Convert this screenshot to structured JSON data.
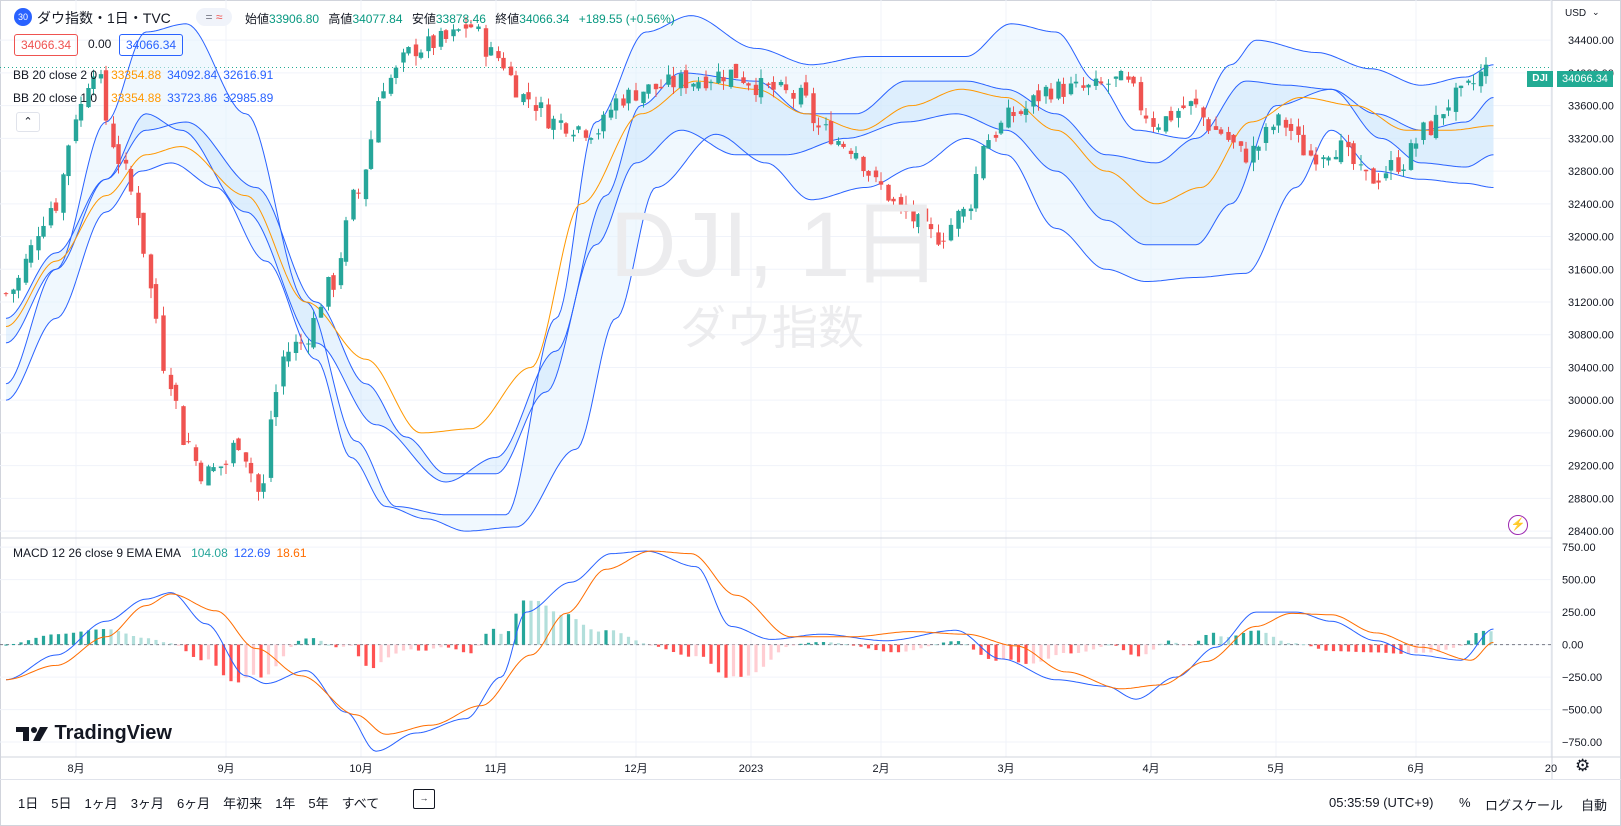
{
  "header": {
    "symbol_badge": "30",
    "title": "ダウ指数・1日・TVC",
    "ohlc": [
      {
        "k": "始値",
        "v": "33906.80"
      },
      {
        "k": "高値",
        "v": "34077.84"
      },
      {
        "k": "安値",
        "v": "33878.46"
      },
      {
        "k": "終値",
        "v": "34066.34"
      }
    ],
    "change": "+189.55 (+0.56%)",
    "sell_price": "34066.34",
    "spread": "0.00",
    "buy_price": "34066.34"
  },
  "indicators": {
    "bb2": {
      "label": "BB 20 close 2 0",
      "basis": "33354.88",
      "upper": "34092.84",
      "lower": "32616.91"
    },
    "bb1": {
      "label": "BB 20 close 1 0",
      "basis": "33354.88",
      "upper": "33723.86",
      "lower": "32985.89"
    },
    "macd": {
      "label": "MACD 12 26 close 9 EMA EMA",
      "hist": "104.08",
      "macd": "122.69",
      "signal": "18.61"
    }
  },
  "watermark": {
    "line1": "DJI, 1日",
    "line2": "ダウ指数"
  },
  "currency": "USD",
  "last_price": {
    "symbol": "DJI",
    "value": "34066.34"
  },
  "logo": "TradingView",
  "bottom_bar": {
    "timeframes": [
      "1日",
      "5日",
      "1ヶ月",
      "3ヶ月",
      "6ヶ月",
      "年初来",
      "1年",
      "5年",
      "すべて"
    ],
    "clock": "05:35:59 (UTC+9)",
    "percent": "%",
    "log_scale": "ログスケール",
    "auto": "自動"
  },
  "colors": {
    "up": "#26a69a",
    "down": "#ef5350",
    "basis": "#ff9800",
    "band": "#2962ff",
    "macd": "#2962ff",
    "signal": "#ff6d00",
    "bull_strong": "#26a69a",
    "bull_weak": "#b2dfdb",
    "bear_strong": "#ff5252",
    "bear_weak": "#ffcdd2",
    "price_tag": "#22ab94"
  },
  "chart_data": [
    {
      "type": "candlestick",
      "title": "ダウ指数・1日・TVC",
      "price_axis": {
        "ticks": [
          34400,
          34000,
          33600,
          33200,
          32800,
          32400,
          32000,
          31600,
          31200,
          30800,
          30400,
          30000,
          29600,
          29200,
          28800,
          28400
        ],
        "ylim": [
          28340,
          34720
        ]
      },
      "time_axis": {
        "labels": [
          "8月",
          "9月",
          "10月",
          "11月",
          "12月",
          "2023",
          "2月",
          "3月",
          "4月",
          "5月",
          "6月",
          "20"
        ]
      },
      "close_anchors": [
        [
          0,
          31300
        ],
        [
          20,
          32400
        ],
        [
          28,
          33500
        ],
        [
          36,
          34100
        ],
        [
          42,
          33200
        ],
        [
          46,
          32900
        ],
        [
          53,
          32300
        ],
        [
          57,
          31400
        ],
        [
          64,
          30400
        ],
        [
          72,
          29500
        ],
        [
          79,
          29100
        ],
        [
          87,
          29200
        ],
        [
          93,
          29500
        ],
        [
          102,
          28850
        ],
        [
          108,
          30100
        ],
        [
          112,
          30600
        ],
        [
          118,
          30700
        ],
        [
          130,
          31400
        ],
        [
          140,
          32500
        ],
        [
          152,
          33900
        ],
        [
          164,
          34300
        ],
        [
          176,
          34400
        ],
        [
          185,
          34580
        ],
        [
          196,
          34200
        ],
        [
          208,
          33700
        ],
        [
          220,
          33400
        ],
        [
          236,
          33300
        ],
        [
          246,
          33700
        ],
        [
          256,
          33800
        ],
        [
          272,
          33900
        ],
        [
          290,
          34000
        ],
        [
          305,
          33800
        ],
        [
          318,
          33700
        ],
        [
          326,
          33300
        ],
        [
          338,
          33100
        ],
        [
          350,
          32600
        ],
        [
          358,
          32300
        ],
        [
          372,
          32000
        ],
        [
          384,
          32300
        ],
        [
          392,
          33200
        ],
        [
          404,
          33500
        ],
        [
          418,
          33800
        ],
        [
          432,
          33800
        ],
        [
          446,
          33900
        ],
        [
          460,
          33400
        ],
        [
          474,
          33600
        ],
        [
          484,
          33300
        ],
        [
          496,
          33000
        ],
        [
          510,
          33400
        ],
        [
          522,
          33000
        ],
        [
          532,
          33100
        ],
        [
          545,
          32700
        ],
        [
          558,
          32900
        ],
        [
          568,
          33300
        ],
        [
          580,
          33700
        ],
        [
          595,
          34080
        ]
      ],
      "bb2_upper_anchors": [
        [
          0,
          30200
        ],
        [
          20,
          31600
        ],
        [
          40,
          33400
        ],
        [
          56,
          34500
        ],
        [
          72,
          34600
        ],
        [
          96,
          33500
        ],
        [
          120,
          31200
        ],
        [
          140,
          29500
        ],
        [
          156,
          28700
        ],
        [
          176,
          28600
        ],
        [
          200,
          28600
        ],
        [
          220,
          31000
        ],
        [
          236,
          33400
        ],
        [
          256,
          34500
        ],
        [
          274,
          34700
        ],
        [
          300,
          34300
        ],
        [
          322,
          34100
        ],
        [
          344,
          34200
        ],
        [
          364,
          34200
        ],
        [
          384,
          34200
        ],
        [
          402,
          34600
        ],
        [
          420,
          34500
        ],
        [
          436,
          33900
        ],
        [
          452,
          33300
        ],
        [
          472,
          33200
        ],
        [
          490,
          34100
        ],
        [
          500,
          34400
        ],
        [
          524,
          34250
        ],
        [
          546,
          34050
        ],
        [
          566,
          33850
        ],
        [
          584,
          33950
        ],
        [
          595,
          34100
        ]
      ],
      "bb2_lower_anchors": [
        [
          0,
          30000
        ],
        [
          20,
          31000
        ],
        [
          40,
          32300
        ],
        [
          54,
          32800
        ],
        [
          66,
          32900
        ],
        [
          84,
          32600
        ],
        [
          104,
          31700
        ],
        [
          124,
          30500
        ],
        [
          138,
          29300
        ],
        [
          152,
          28700
        ],
        [
          168,
          28550
        ],
        [
          184,
          28400
        ],
        [
          204,
          28450
        ],
        [
          228,
          29400
        ],
        [
          244,
          31000
        ],
        [
          260,
          32600
        ],
        [
          284,
          33250
        ],
        [
          304,
          32900
        ],
        [
          322,
          32450
        ],
        [
          344,
          32600
        ],
        [
          364,
          32850
        ],
        [
          384,
          33200
        ],
        [
          400,
          33000
        ],
        [
          420,
          32100
        ],
        [
          440,
          31600
        ],
        [
          456,
          31450
        ],
        [
          476,
          31500
        ],
        [
          496,
          31550
        ],
        [
          516,
          32600
        ],
        [
          530,
          33300
        ],
        [
          548,
          32800
        ],
        [
          566,
          32700
        ],
        [
          584,
          32650
        ],
        [
          595,
          32600
        ]
      ],
      "bb1_upper_anchors": [
        [
          0,
          31000
        ],
        [
          20,
          31800
        ],
        [
          40,
          32700
        ],
        [
          56,
          33500
        ],
        [
          70,
          33300
        ],
        [
          96,
          32300
        ],
        [
          124,
          30700
        ],
        [
          148,
          29700
        ],
        [
          176,
          29000
        ],
        [
          196,
          29300
        ],
        [
          220,
          30600
        ],
        [
          240,
          32500
        ],
        [
          254,
          33600
        ],
        [
          270,
          34000
        ],
        [
          300,
          33900
        ],
        [
          320,
          33500
        ],
        [
          340,
          33500
        ],
        [
          360,
          33900
        ],
        [
          384,
          33900
        ],
        [
          400,
          33800
        ],
        [
          420,
          33500
        ],
        [
          440,
          33000
        ],
        [
          460,
          32900
        ],
        [
          476,
          33200
        ],
        [
          496,
          33900
        ],
        [
          512,
          33850
        ],
        [
          530,
          33800
        ],
        [
          548,
          33500
        ],
        [
          566,
          33300
        ],
        [
          584,
          33400
        ],
        [
          595,
          33700
        ]
      ],
      "bb1_lower_anchors": [
        [
          0,
          30700
        ],
        [
          20,
          31600
        ],
        [
          40,
          32700
        ],
        [
          56,
          33300
        ],
        [
          72,
          33400
        ],
        [
          100,
          32600
        ],
        [
          124,
          31200
        ],
        [
          144,
          30200
        ],
        [
          160,
          29550
        ],
        [
          176,
          29100
        ],
        [
          196,
          29100
        ],
        [
          216,
          30100
        ],
        [
          236,
          31900
        ],
        [
          252,
          32900
        ],
        [
          270,
          33300
        ],
        [
          292,
          33000
        ],
        [
          312,
          33000
        ],
        [
          336,
          33200
        ],
        [
          360,
          33400
        ],
        [
          380,
          33500
        ],
        [
          400,
          33300
        ],
        [
          420,
          32800
        ],
        [
          440,
          32200
        ],
        [
          456,
          31900
        ],
        [
          476,
          31900
        ],
        [
          490,
          32400
        ],
        [
          508,
          33600
        ],
        [
          530,
          33800
        ],
        [
          550,
          33200
        ],
        [
          566,
          32900
        ],
        [
          584,
          32850
        ],
        [
          595,
          33000
        ]
      ],
      "basis_anchors": [
        [
          0,
          30900
        ],
        [
          20,
          31700
        ],
        [
          40,
          32500
        ],
        [
          56,
          33000
        ],
        [
          70,
          33100
        ],
        [
          96,
          32500
        ],
        [
          120,
          31200
        ],
        [
          144,
          30500
        ],
        [
          166,
          29600
        ],
        [
          186,
          29650
        ],
        [
          210,
          30400
        ],
        [
          230,
          32400
        ],
        [
          254,
          33500
        ],
        [
          276,
          33900
        ],
        [
          300,
          33800
        ],
        [
          320,
          33500
        ],
        [
          342,
          33300
        ],
        [
          362,
          33600
        ],
        [
          382,
          33800
        ],
        [
          400,
          33700
        ],
        [
          420,
          33300
        ],
        [
          440,
          32800
        ],
        [
          460,
          32400
        ],
        [
          478,
          32600
        ],
        [
          498,
          33400
        ],
        [
          518,
          33700
        ],
        [
          540,
          33600
        ],
        [
          560,
          33300
        ],
        [
          578,
          33300
        ],
        [
          595,
          33354
        ]
      ]
    },
    {
      "type": "bar",
      "title": "MACD 12 26 close 9 EMA EMA",
      "y_axis": {
        "ticks": [
          750,
          500,
          250,
          0,
          -250,
          -500,
          -750
        ],
        "ylim": [
          -865,
          805
        ]
      },
      "macd_anchors": [
        [
          0,
          -270
        ],
        [
          20,
          -80
        ],
        [
          40,
          180
        ],
        [
          56,
          350
        ],
        [
          66,
          400
        ],
        [
          80,
          160
        ],
        [
          96,
          -240
        ],
        [
          104,
          -300
        ],
        [
          120,
          -200
        ],
        [
          136,
          -520
        ],
        [
          148,
          -820
        ],
        [
          164,
          -680
        ],
        [
          184,
          -570
        ],
        [
          198,
          -250
        ],
        [
          208,
          250
        ],
        [
          226,
          480
        ],
        [
          242,
          700
        ],
        [
          256,
          720
        ],
        [
          276,
          600
        ],
        [
          290,
          140
        ],
        [
          306,
          40
        ],
        [
          326,
          80
        ],
        [
          352,
          30
        ],
        [
          380,
          110
        ],
        [
          398,
          -110
        ],
        [
          420,
          -270
        ],
        [
          440,
          -320
        ],
        [
          452,
          -420
        ],
        [
          468,
          -250
        ],
        [
          484,
          -20
        ],
        [
          500,
          250
        ],
        [
          516,
          250
        ],
        [
          530,
          180
        ],
        [
          548,
          30
        ],
        [
          564,
          -80
        ],
        [
          582,
          -120
        ],
        [
          595,
          120
        ]
      ],
      "signal_anchors": [
        [
          0,
          -270
        ],
        [
          20,
          -160
        ],
        [
          40,
          60
        ],
        [
          56,
          300
        ],
        [
          66,
          390
        ],
        [
          84,
          260
        ],
        [
          100,
          -30
        ],
        [
          118,
          -240
        ],
        [
          140,
          -540
        ],
        [
          152,
          -690
        ],
        [
          170,
          -620
        ],
        [
          190,
          -470
        ],
        [
          210,
          -80
        ],
        [
          224,
          240
        ],
        [
          240,
          580
        ],
        [
          258,
          720
        ],
        [
          274,
          700
        ],
        [
          292,
          380
        ],
        [
          314,
          60
        ],
        [
          338,
          60
        ],
        [
          362,
          100
        ],
        [
          384,
          80
        ],
        [
          404,
          -10
        ],
        [
          424,
          -210
        ],
        [
          446,
          -340
        ],
        [
          462,
          -310
        ],
        [
          480,
          -130
        ],
        [
          500,
          140
        ],
        [
          514,
          240
        ],
        [
          530,
          230
        ],
        [
          548,
          90
        ],
        [
          566,
          -20
        ],
        [
          586,
          -120
        ],
        [
          595,
          18
        ]
      ]
    }
  ]
}
